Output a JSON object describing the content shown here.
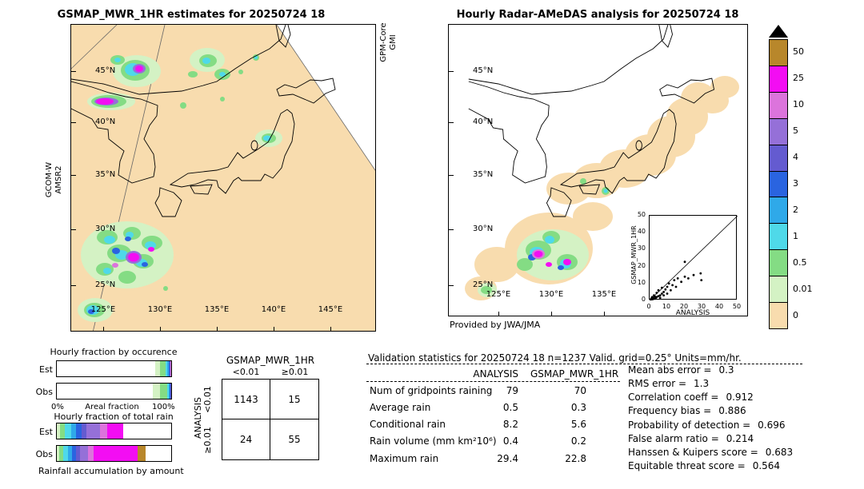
{
  "ui": {
    "left_map": {
      "title": "GSMAP_MWR_1HR estimates for 20250724 18",
      "swath_label_left": [
        "GCOM-W",
        "AMSR2"
      ],
      "swath_label_right": [
        "GPM-Core",
        "GMI"
      ],
      "lat_ticks": [
        "45°N",
        "40°N",
        "35°N",
        "30°N",
        "25°N"
      ],
      "lon_ticks": [
        "125°E",
        "130°E",
        "135°E",
        "140°E",
        "145°E"
      ]
    },
    "right_map": {
      "title": "Hourly Radar-AMeDAS analysis for 20250724 18",
      "lat_ticks": [
        "45°N",
        "40°N",
        "35°N",
        "30°N",
        "25°N"
      ],
      "lon_ticks": [
        "125°E",
        "130°E",
        "135°E"
      ],
      "credit": "Provided by JWA/JMA",
      "inset": {
        "xlabel": "ANALYSIS",
        "ylabel": "GSMAP_MWR_1HR",
        "x_ticks": [
          "0",
          "10",
          "20",
          "30",
          "40",
          "50"
        ],
        "y_ticks": [
          "0",
          "10",
          "20",
          "30",
          "40",
          "50"
        ]
      }
    },
    "colorbar": {
      "labels": [
        "50",
        "25",
        "10",
        "5",
        "4",
        "3",
        "2",
        "1",
        "0.5",
        "0.01",
        "0"
      ],
      "colors": [
        "#b8872b",
        "#f30df3",
        "#dc74dc",
        "#9570d8",
        "#645bd0",
        "#2a64e0",
        "#2fa9e9",
        "#4fd9e9",
        "#84dc84",
        "#d4f2c4",
        "#f8dcae"
      ]
    },
    "fractions": {
      "occurrence_title": "Hourly fraction by occurence",
      "totalrain_title": "Hourly fraction of total rain",
      "bottom_label": "Rainfall accumulation by amount",
      "row_labels": [
        "Est",
        "Obs"
      ],
      "axis": {
        "left": "0%",
        "center": "Areal fraction",
        "right": "100%"
      }
    },
    "contingency": {
      "header": "GSMAP_MWR_1HR",
      "col_labels": [
        "<0.01",
        "≥0.01"
      ],
      "row_axis_label": "ANALYSIS",
      "row_labels": [
        "<0.01",
        "≥0.01"
      ]
    },
    "stats": {
      "title": "Validation statistics for 20250724 18  n=1237 Valid. grid=0.25° Units=mm/hr.",
      "col_headers": [
        "ANALYSIS",
        "GSMAP_MWR_1HR"
      ],
      "metrics": [
        {
          "label": "Mean abs error =",
          "value": "0.3"
        },
        {
          "label": "RMS error =",
          "value": "1.3"
        },
        {
          "label": "Correlation coeff =",
          "value": "0.912"
        },
        {
          "label": "Frequency bias =",
          "value": "0.886"
        },
        {
          "label": "Probability of detection =",
          "value": "0.696"
        },
        {
          "label": "False alarm ratio =",
          "value": "0.214"
        },
        {
          "label": "Hanssen & Kuipers score =",
          "value": "0.683"
        },
        {
          "label": "Equitable threat score =",
          "value": "0.564"
        }
      ]
    }
  },
  "chart_data": [
    {
      "type": "table",
      "name": "contingency_table_gridpoints",
      "x_axis": "GSMAP_MWR_1HR",
      "y_axis": "ANALYSIS",
      "columns": [
        "<0.01",
        "≥0.01"
      ],
      "rows": [
        {
          "label": "<0.01",
          "values": [
            "1143",
            "15"
          ]
        },
        {
          "label": "≥0.01",
          "values": [
            "24",
            "55"
          ]
        }
      ]
    },
    {
      "type": "table",
      "name": "validation_statistics",
      "title": "Validation statistics for 20250724 18 n=1237 Valid. grid=0.25° Units=mm/hr.",
      "columns": [
        "metric",
        "ANALYSIS",
        "GSMAP_MWR_1HR"
      ],
      "rows": [
        [
          "Num of gridpoints raining",
          "79",
          "70"
        ],
        [
          "Average rain",
          "0.5",
          "0.3"
        ],
        [
          "Conditional rain",
          "8.2",
          "5.6"
        ],
        [
          "Rain volume (mm km²10⁶)",
          "0.4",
          "0.2"
        ],
        [
          "Maximum rain",
          "29.4",
          "22.8"
        ]
      ]
    },
    {
      "type": "table",
      "name": "skill_scores",
      "rows": [
        [
          "Mean abs error",
          0.3
        ],
        [
          "RMS error",
          1.3
        ],
        [
          "Correlation coeff",
          0.912
        ],
        [
          "Frequency bias",
          0.886
        ],
        [
          "Probability of detection",
          0.696
        ],
        [
          "False alarm ratio",
          0.214
        ],
        [
          "Hanssen & Kuipers score",
          0.683
        ],
        [
          "Equitable threat score",
          0.564
        ]
      ]
    },
    {
      "type": "bar",
      "name": "hourly_fraction_by_occurrence",
      "subtype": "stacked_horizontal_percent",
      "title": "Hourly fraction by occurence",
      "xlabel": "Areal fraction",
      "xlim": [
        0,
        100
      ],
      "categories": [
        "Est",
        "Obs"
      ],
      "classes": [
        "no rain",
        "0.01-0.5",
        "0.5-1",
        "1-2",
        "2-3",
        "3-4",
        "4-5",
        "5-10",
        "10-25",
        "25-50",
        ">50"
      ],
      "series": [
        {
          "name": "Est",
          "values": [
            86,
            4.5,
            4.5,
            1.6,
            1.2,
            0.8,
            0.4,
            0.4,
            0.6,
            0,
            0
          ]
        },
        {
          "name": "Obs",
          "values": [
            84,
            6,
            6.2,
            1.6,
            1,
            0.6,
            0.3,
            0.2,
            0.1,
            0,
            0
          ]
        }
      ]
    },
    {
      "type": "bar",
      "name": "hourly_fraction_of_total_rain",
      "subtype": "stacked_horizontal_percent",
      "title": "Hourly fraction of total rain",
      "xlabel": "Rainfall accumulation by amount",
      "xlim": [
        0,
        100
      ],
      "categories": [
        "Est",
        "Obs"
      ],
      "classes": [
        "no rain",
        "0.01-0.5",
        "0.5-1",
        "1-2",
        "2-3",
        "3-4",
        "4-5",
        "5-10",
        "10-25",
        "25-50",
        ">50"
      ],
      "series": [
        {
          "name": "Est",
          "values": [
            0,
            2.5,
            4.5,
            5.5,
            4.5,
            4.5,
            4.5,
            12,
            6,
            14,
            0
          ]
        },
        {
          "name": "Obs",
          "values": [
            0,
            2,
            3.5,
            4,
            4,
            3.5,
            3.5,
            7,
            5,
            38,
            7
          ]
        }
      ]
    },
    {
      "type": "scatter",
      "name": "inset_scatter_gsmap_vs_analysis",
      "xlabel": "ANALYSIS",
      "ylabel": "GSMAP_MWR_1HR",
      "xlim": [
        0,
        50
      ],
      "ylim": [
        0,
        50
      ],
      "identity_line": true,
      "points": [
        [
          0.5,
          0.5
        ],
        [
          1,
          0.3
        ],
        [
          1,
          1.2
        ],
        [
          1.5,
          2
        ],
        [
          2,
          0.8
        ],
        [
          2,
          1.5
        ],
        [
          2.5,
          3
        ],
        [
          3,
          1
        ],
        [
          3,
          2.2
        ],
        [
          3.5,
          1.5
        ],
        [
          4,
          2
        ],
        [
          4,
          4.5
        ],
        [
          5,
          2.5
        ],
        [
          5,
          6
        ],
        [
          6,
          3
        ],
        [
          6,
          1.5
        ],
        [
          7,
          4
        ],
        [
          7,
          7.5
        ],
        [
          8,
          3
        ],
        [
          8,
          5
        ],
        [
          9,
          6.5
        ],
        [
          10,
          4
        ],
        [
          10,
          8
        ],
        [
          11,
          10
        ],
        [
          12,
          6
        ],
        [
          13,
          9
        ],
        [
          14,
          12
        ],
        [
          15,
          8
        ],
        [
          16,
          13
        ],
        [
          18,
          11
        ],
        [
          20,
          14
        ],
        [
          20,
          22.8
        ],
        [
          22,
          13
        ],
        [
          25,
          15
        ],
        [
          29,
          16
        ],
        [
          29.4,
          12
        ]
      ]
    }
  ]
}
